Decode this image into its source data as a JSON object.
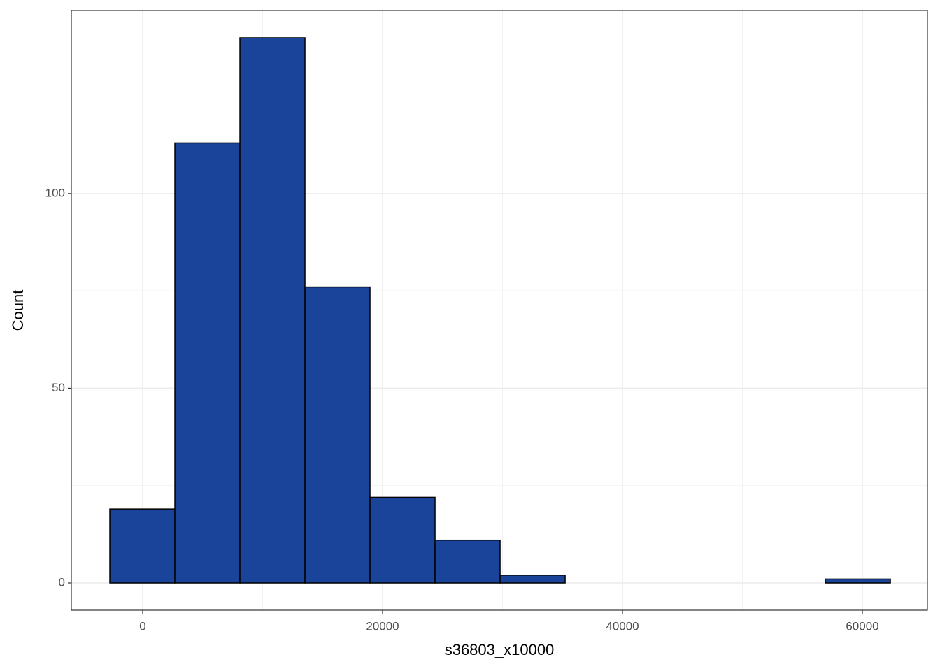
{
  "chart_data": {
    "type": "histogram",
    "x_label": "s36803_x10000",
    "y_label": "Count",
    "bins": [
      -2740,
      2683,
      8106,
      13529,
      18952,
      24375,
      29798,
      35221,
      40644,
      46067,
      51490,
      56913,
      62336
    ],
    "values": [
      19,
      113,
      140,
      76,
      22,
      11,
      2,
      0,
      0,
      0,
      0,
      1
    ],
    "color": "#1a4499",
    "xlim": [
      -5948,
      65423
    ],
    "xticks": [
      0,
      20000,
      40000,
      60000
    ],
    "x_minor_ticks": [
      10000,
      30000,
      50000
    ],
    "ylim": [
      -7,
      147
    ],
    "yticks": [
      0,
      50,
      100
    ],
    "y_minor_ticks": [
      25,
      75,
      125
    ],
    "grid": true
  }
}
